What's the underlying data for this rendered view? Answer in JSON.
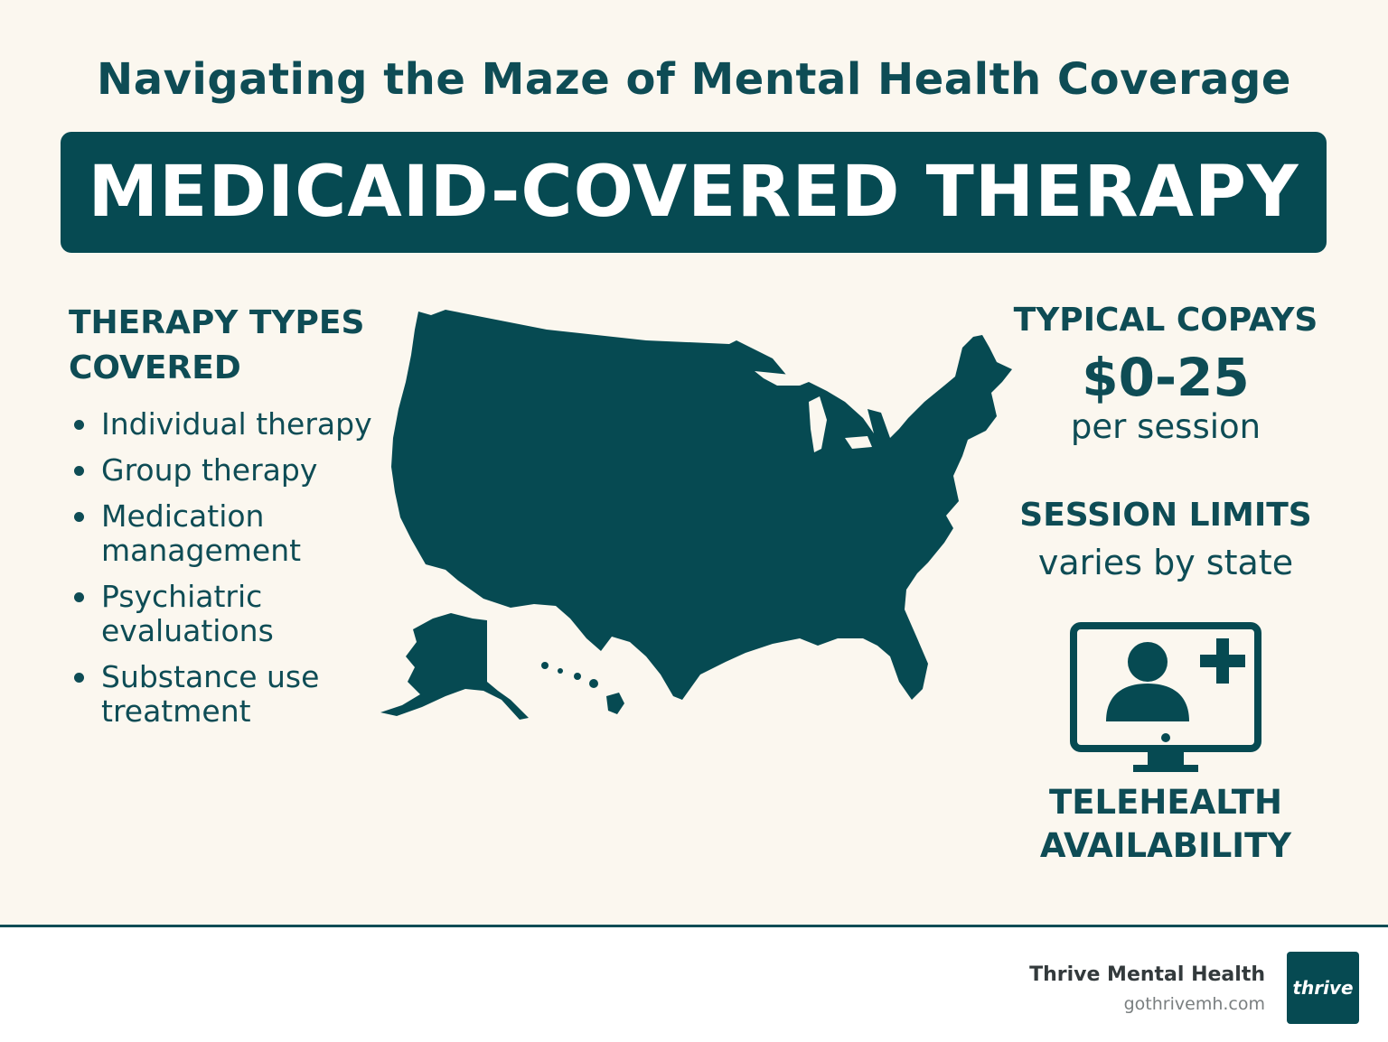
{
  "header": {
    "title": "Navigating the Maze of Mental Health Coverage",
    "banner": "MEDICAID-COVERED THERAPY"
  },
  "therapy_types": {
    "heading_line1": "THERAPY TYPES",
    "heading_line2": "COVERED",
    "items": [
      {
        "line1": "Individual therapy",
        "line2": ""
      },
      {
        "line1": "Group therapy",
        "line2": ""
      },
      {
        "line1": "Medication",
        "line2": "management"
      },
      {
        "line1": "Psychiatric",
        "line2": "evaluations"
      },
      {
        "line1": "Substance use",
        "line2": "treatment"
      }
    ]
  },
  "copays": {
    "heading": "TYPICAL COPAYS",
    "value": "$0-25",
    "unit": "per session"
  },
  "session_limits": {
    "heading": "SESSION LIMITS",
    "value": "varies by state"
  },
  "telehealth": {
    "line1": "TELEHEALTH",
    "line2": "AVAILABILITY",
    "icon": "telehealth-monitor-icon"
  },
  "map": {
    "icon": "us-map-silhouette"
  },
  "footer": {
    "brand": "Thrive Mental Health",
    "url": "gothrivemh.com",
    "logo_text": "thrive"
  },
  "colors": {
    "primary": "#064a52",
    "text": "#0e4c55",
    "background": "#fbf7ef"
  }
}
